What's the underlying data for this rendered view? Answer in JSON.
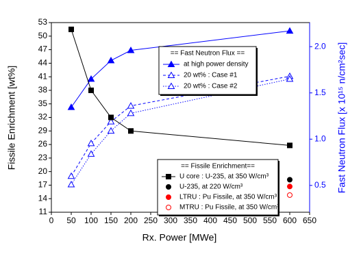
{
  "chart_data": {
    "type": "line",
    "x_label": "Rx. Power [MWe]",
    "y_label": "Fissile Enrichment [wt%]",
    "y2_label": "Fast Neutron Flux [x 10¹⁵ n/cm²sec]",
    "xlim": [
      0,
      650
    ],
    "xticks": [
      0,
      50,
      100,
      150,
      200,
      250,
      300,
      350,
      400,
      450,
      500,
      550,
      600,
      650
    ],
    "ylim": [
      11,
      53
    ],
    "yticks": [
      11,
      14,
      17,
      20,
      23,
      26,
      29,
      32,
      35,
      38,
      41,
      44,
      47,
      50,
      53
    ],
    "y2lim": [
      0.21,
      2.26
    ],
    "y2ticks": [
      0.5,
      {
        "value": 1,
        "label": "1.0"
      },
      1.5,
      {
        "value": 2,
        "label": "2.0"
      }
    ],
    "y2_color": "#0000ff",
    "legend_titles": [
      "== Fast Neutron Flux ==",
      "== Fissile Enrichment=="
    ],
    "series": [
      {
        "name": "at high power density",
        "axis": "y2",
        "legend": 0,
        "color": "#0000ff",
        "marker": "triangle",
        "filled": true,
        "dash": "solid",
        "x": [
          50,
          100,
          150,
          200,
          600
        ],
        "values": [
          1.345,
          1.65,
          1.85,
          1.96,
          2.17
        ]
      },
      {
        "name": "20 wt% : Case #1",
        "axis": "y2",
        "legend": 0,
        "color": "#0000ff",
        "marker": "triangle",
        "filled": false,
        "dash": "dashed",
        "x": [
          50,
          100,
          150,
          200,
          600
        ],
        "values": [
          0.6,
          0.955,
          1.19,
          1.36,
          1.68
        ]
      },
      {
        "name": "20 wt% : Case #2",
        "axis": "y2",
        "legend": 0,
        "color": "#0000ff",
        "marker": "triangle",
        "filled": false,
        "dash": "dotted",
        "x": [
          50,
          100,
          150,
          200,
          600
        ],
        "values": [
          0.51,
          0.84,
          1.09,
          1.28,
          1.65
        ]
      },
      {
        "name": "U core : U-235, at 350 W/cm³",
        "legend": 1,
        "color": "#000000",
        "marker": "square",
        "filled": true,
        "dash": "solid",
        "x": [
          50,
          100,
          150,
          200,
          600
        ],
        "values": [
          51.5,
          38,
          32,
          29,
          25.8
        ]
      },
      {
        "name": "U-235, at 220 W/cm³",
        "legend": 1,
        "color": "#000000",
        "marker": "circle",
        "filled": true,
        "dash": "none",
        "x": [
          600
        ],
        "values": [
          18.2
        ]
      },
      {
        "name": "LTRU :  Pu Fissile, at 350 W/cm³",
        "legend": 1,
        "color": "#ff0000",
        "marker": "circle",
        "filled": true,
        "dash": "none",
        "x": [
          600
        ],
        "values": [
          16.7
        ]
      },
      {
        "name": "MTRU : Pu Fissile, at 350 W/cm³",
        "legend": 1,
        "color": "#ff0000",
        "marker": "circle",
        "filled": false,
        "dash": "none",
        "x": [
          600
        ],
        "values": [
          14.8
        ]
      }
    ]
  }
}
